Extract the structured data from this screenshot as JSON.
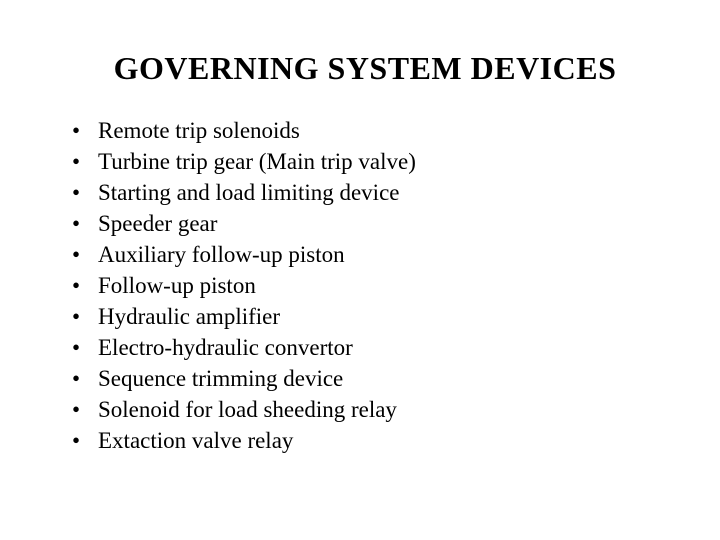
{
  "title": "GOVERNING SYSTEM DEVICES",
  "items": [
    "Remote trip solenoids",
    "Turbine trip gear (Main trip valve)",
    "Starting and load limiting device",
    "Speeder gear",
    "Auxiliary follow-up piston",
    "Follow-up piston",
    "Hydraulic amplifier",
    "Electro-hydraulic convertor",
    "Sequence trimming device",
    "Solenoid for load sheeding relay",
    "Extaction valve relay"
  ]
}
